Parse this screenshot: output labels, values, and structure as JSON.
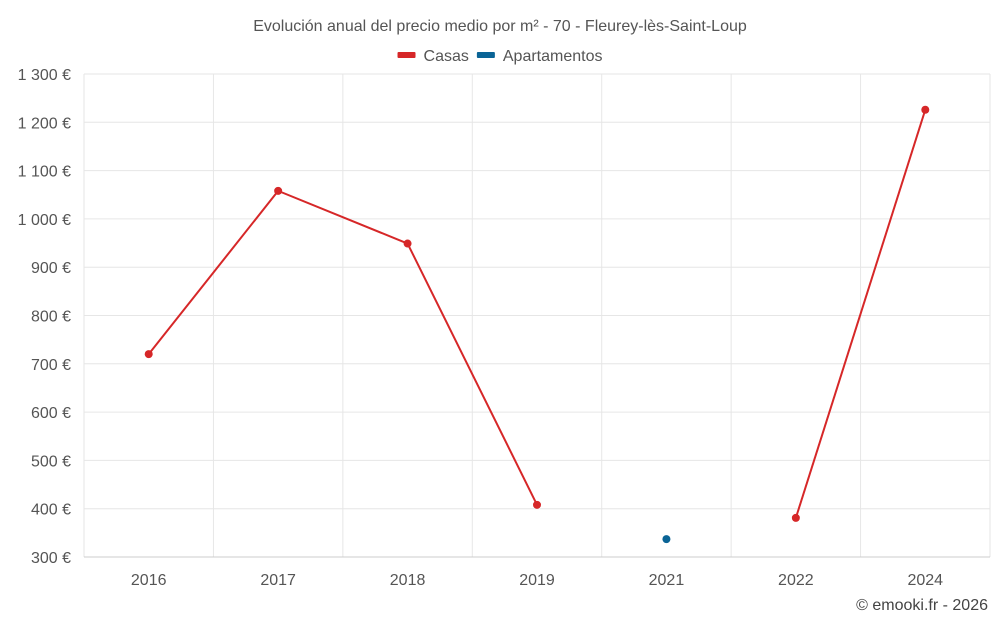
{
  "chart_data": {
    "type": "line",
    "title": "Evolución anual del precio medio por m² - 70 - Fleurey-lès-Saint-Loup",
    "categories": [
      "2016",
      "2017",
      "2018",
      "2019",
      "2021",
      "2022",
      "2024"
    ],
    "series": [
      {
        "name": "Casas",
        "color": "#d62728",
        "values": [
          720,
          1058,
          949,
          408,
          null,
          381,
          1226
        ]
      },
      {
        "name": "Apartamentos",
        "color": "#0a6496",
        "values": [
          null,
          null,
          null,
          null,
          337,
          null,
          null
        ]
      }
    ],
    "ylim": [
      300,
      1300
    ],
    "yticks": [
      300,
      400,
      500,
      600,
      700,
      800,
      900,
      1000,
      1100,
      1200,
      1300
    ],
    "ytick_labels": [
      "300 €",
      "400 €",
      "500 €",
      "600 €",
      "700 €",
      "800 €",
      "900 €",
      "1 000 €",
      "1 100 €",
      "1 200 €",
      "1 300 €"
    ],
    "xlabel": "",
    "ylabel": "",
    "grid": true,
    "legend_position": "top-center"
  },
  "credit": "© emooki.fr - 2026"
}
